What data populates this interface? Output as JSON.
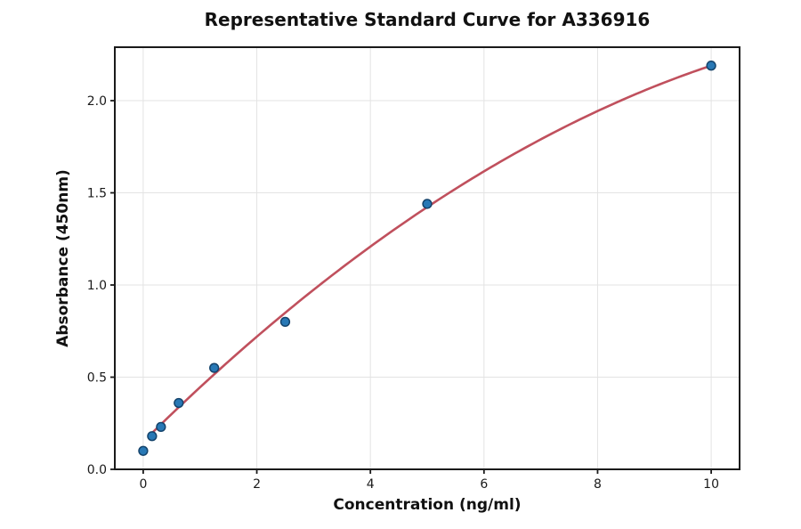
{
  "chart_data": {
    "type": "scatter",
    "title": "Representative Standard Curve for A336916",
    "xlabel": "Concentration (ng/ml)",
    "ylabel": "Absorbance (450nm)",
    "xlim": [
      -0.5,
      10.5
    ],
    "ylim": [
      0,
      2.29
    ],
    "xticks": [
      0,
      2,
      4,
      6,
      8,
      10
    ],
    "xtick_labels": [
      "0",
      "2",
      "4",
      "6",
      "8",
      "10"
    ],
    "yticks": [
      0,
      0.5,
      1.0,
      1.5,
      2.0
    ],
    "ytick_labels": [
      "0.0",
      "0.5",
      "1.0",
      "1.5",
      "2.0"
    ],
    "grid": true,
    "legend_position": "none",
    "points": [
      {
        "x": 0,
        "y": 0.1
      },
      {
        "x": 0.156,
        "y": 0.18
      },
      {
        "x": 0.3125,
        "y": 0.23
      },
      {
        "x": 0.625,
        "y": 0.36
      },
      {
        "x": 1.25,
        "y": 0.55
      },
      {
        "x": 2.5,
        "y": 0.8
      },
      {
        "x": 5,
        "y": 1.44
      },
      {
        "x": 10,
        "y": 2.19
      }
    ],
    "fit_curve": {
      "model": "quadratic",
      "equation": "y = 0.15 + 0.305x - 0.0101x^2",
      "a": 0.15,
      "b": 0.305,
      "c": -0.0101,
      "x_start": 0.1,
      "x_end": 10
    },
    "colors": {
      "point_fill": "#2878b5",
      "point_edge": "#14436b",
      "curve": "#c0505d",
      "grid": "#e3e3e3",
      "spine": "#1a1a1a",
      "text": "#111111"
    }
  }
}
